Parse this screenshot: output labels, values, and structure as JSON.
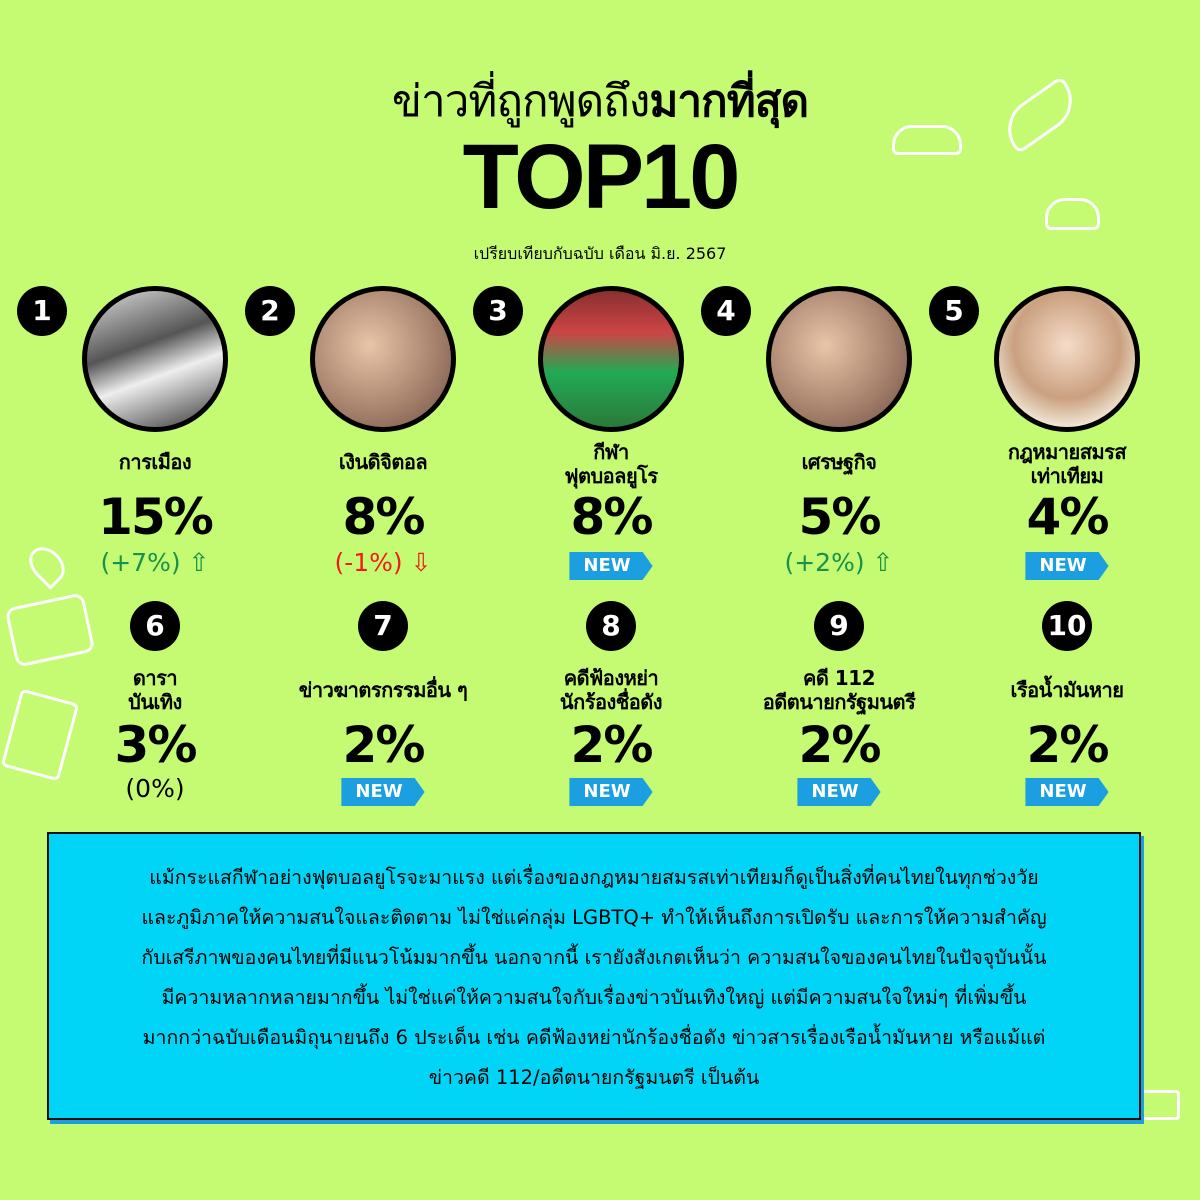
{
  "header": {
    "title_regular": "ข่าวที่ถูกพูดถึง",
    "title_bold": "มากที่สุด",
    "headline": "TOP10",
    "subtitle": "เปรียบเทียบกับฉบับ เดือน มิ.ย. 2567"
  },
  "colors": {
    "background": "#c4fb72",
    "box": "#00d5f7",
    "new_badge": "#1b9fe0",
    "up": "#16924a",
    "down": "#ee1c1c"
  },
  "items": [
    {
      "rank": "1",
      "label": "การเมือง",
      "percent": "15%",
      "change": "(+7%)",
      "trend": "up"
    },
    {
      "rank": "2",
      "label": "เงินดิจิตอล",
      "percent": "8%",
      "change": "(-1%)",
      "trend": "down"
    },
    {
      "rank": "3",
      "label": "กีฬา\nฟุตบอลยูโร",
      "percent": "8%",
      "badge": "NEW"
    },
    {
      "rank": "4",
      "label": "เศรษฐกิจ",
      "percent": "5%",
      "change": "(+2%)",
      "trend": "up"
    },
    {
      "rank": "5",
      "label": "กฎหมายสมรส\nเท่าเทียม",
      "percent": "4%",
      "badge": "NEW"
    },
    {
      "rank": "6",
      "label": "ดารา\nบันเทิง",
      "percent": "3%",
      "change": "(0%)",
      "trend": "none"
    },
    {
      "rank": "7",
      "label": "ข่าวฆาตรกรรมอื่น ๆ",
      "percent": "2%",
      "badge": "NEW"
    },
    {
      "rank": "8",
      "label": "คดีฟ้องหย่า\nนักร้องชื่อดัง",
      "percent": "2%",
      "badge": "NEW"
    },
    {
      "rank": "9",
      "label": "คดี 112\nอดีตนายกรัฐมนตรี",
      "percent": "2%",
      "badge": "NEW"
    },
    {
      "rank": "10",
      "label": "เรือน้ำมันหาย",
      "percent": "2%",
      "badge": "NEW"
    }
  ],
  "summary": [
    "แม้กระแสกีฬาอย่างฟุตบอลยูโรจะมาแรง แต่เรื่องของกฎหมายสมรสเท่าเทียมก็ดูเป็นสิ่งที่คนไทยในทุกช่วงวัย",
    "และภูมิภาคให้ความสนใจและติดตาม ไม่ใช่แค่กลุ่ม LGBTQ+ ทำให้เห็นถึงการเปิดรับ และการให้ความสำคัญ",
    "กับเสรีภาพของคนไทยที่มีแนวโน้มมากขึ้น นอกจากนี้ เรายังสังเกตเห็นว่า ความสนใจของคนไทยในปัจจุบันนั้น",
    "มีความหลากหลายมากขึ้น ไม่ใช่แค่ให้ความสนใจกับเรื่องข่าวบันเทิงใหญ่ แต่มีความสนใจใหม่ๆ ที่เพิ่มขึ้น",
    "มากกว่าฉบับเดือนมิถุนายนถึง 6 ประเด็น เช่น คดีฟ้องหย่านักร้องชื่อดัง ข่าวสารเรื่องเรือน้ำมันหาย หรือแม้แต่",
    "ข่าวคดี 112/อดีตนายกรัฐมนตรี เป็นต้น"
  ]
}
